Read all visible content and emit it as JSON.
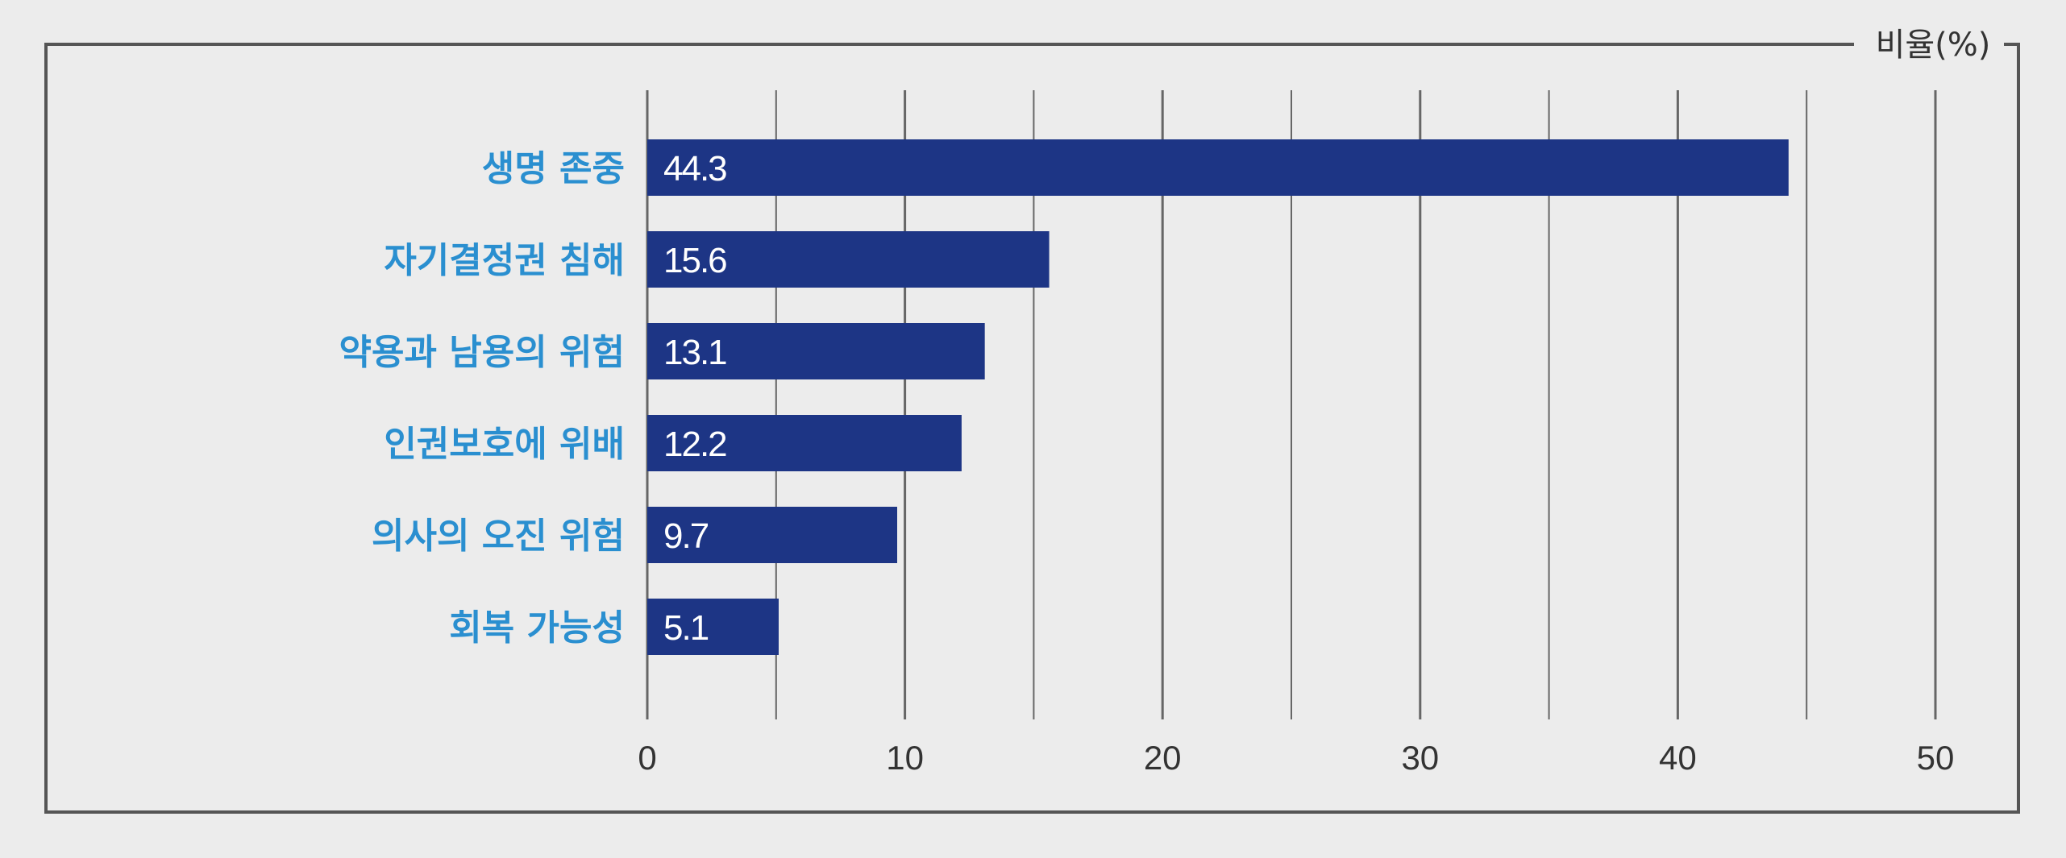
{
  "chart_data": {
    "type": "bar",
    "orientation": "horizontal",
    "unit_label": "비율(%)",
    "categories": [
      "생명 존중",
      "자기결정권 침해",
      "약용과 남용의 위험",
      "인권보호에 위배",
      "의사의 오진 위험",
      "회복 가능성"
    ],
    "values": [
      44.3,
      15.6,
      13.1,
      12.2,
      9.7,
      5.1
    ],
    "value_labels": [
      "44.3",
      "15.6",
      "13.1",
      "12.2",
      "9.7",
      "5.1"
    ],
    "xlim": [
      0,
      50
    ],
    "ticks": [
      "0",
      "10",
      "20",
      "30",
      "40",
      "50"
    ],
    "grid": true,
    "colors": {
      "bar": "#1d3585",
      "category_text": "#2a8fd0",
      "grid": "#666666",
      "frame": "#555555",
      "background": "#ececec"
    }
  }
}
